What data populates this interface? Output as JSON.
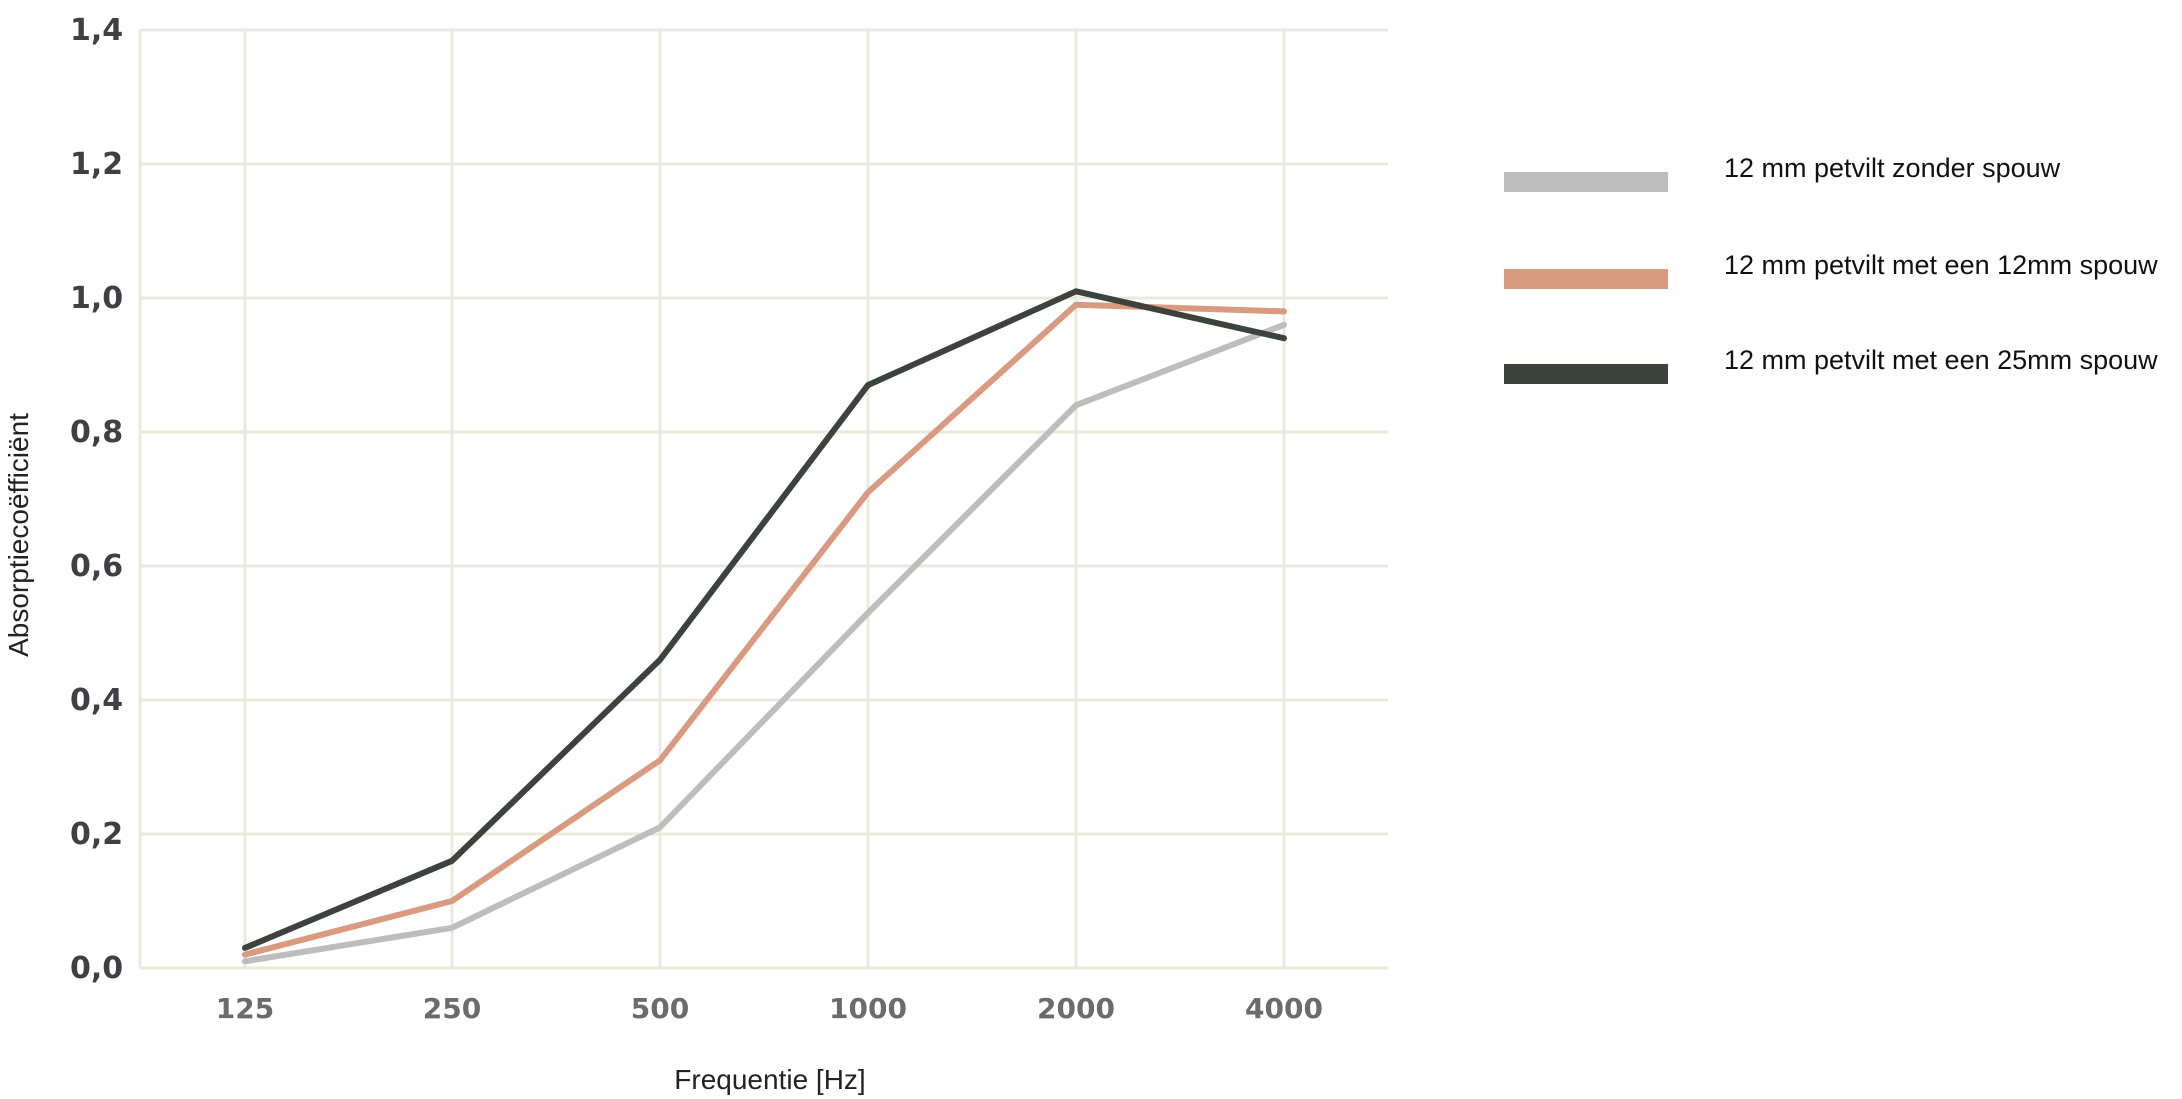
{
  "chart_data": {
    "type": "line",
    "title": "",
    "xlabel": "Frequentie  [Hz]",
    "ylabel": "Absorptiecoëfficiënt",
    "categories": [
      "125",
      "250",
      "500",
      "1000",
      "2000",
      "4000"
    ],
    "yticks": [
      "0,0",
      "0,2",
      "0,4",
      "0,6",
      "0,8",
      "1,0",
      "1,2",
      "1,4"
    ],
    "ylim": [
      0,
      1.4
    ],
    "grid": true,
    "legend_position": "right",
    "series": [
      {
        "name": "12 mm petvilt zonder spouw",
        "color": "#bdbdbd",
        "values": [
          0.01,
          0.06,
          0.21,
          0.53,
          0.84,
          0.96
        ]
      },
      {
        "name": "12 mm petvilt met een 12mm spouw",
        "color": "#d99a80",
        "values": [
          0.02,
          0.1,
          0.31,
          0.71,
          0.99,
          0.98
        ]
      },
      {
        "name": "12 mm petvilt met een 25mm spouw",
        "color": "#3c433d",
        "values": [
          0.03,
          0.16,
          0.46,
          0.87,
          1.01,
          0.94
        ]
      }
    ]
  }
}
